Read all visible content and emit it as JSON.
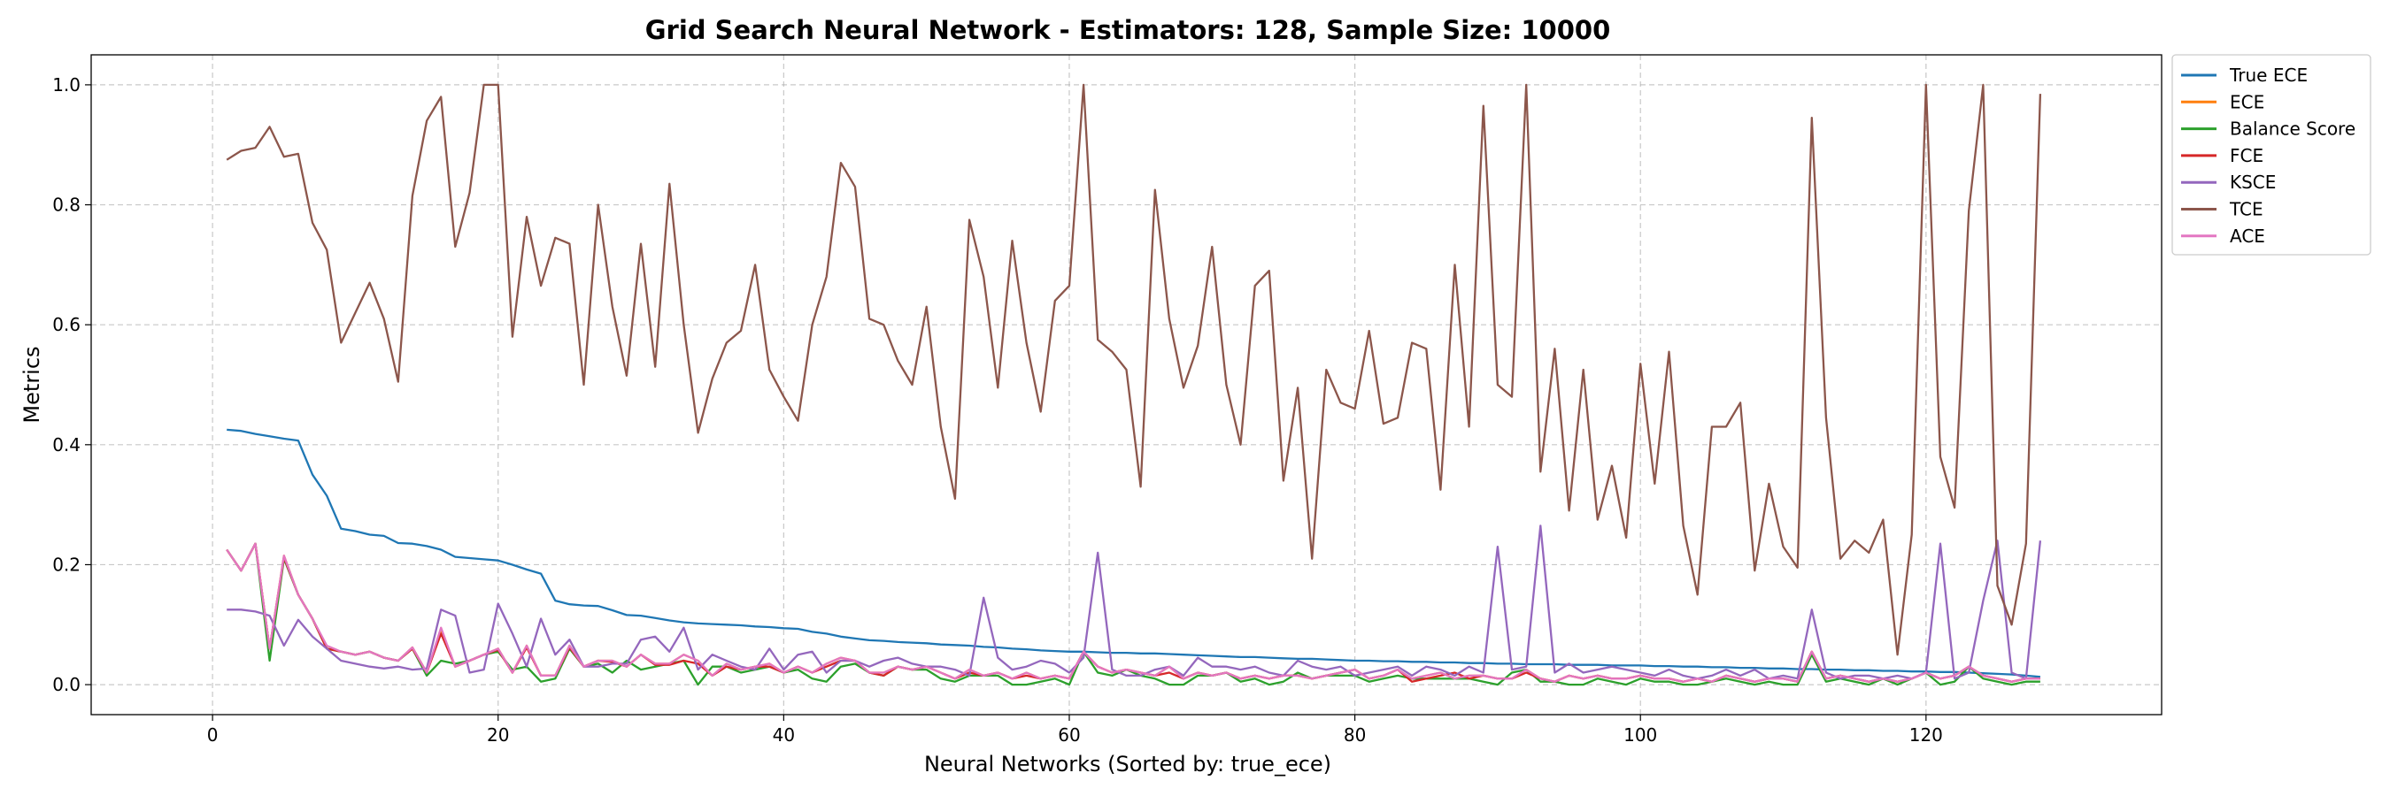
{
  "chart_data": {
    "type": "line",
    "title": "Grid Search Neural Network - Estimators: 128, Sample Size: 10000",
    "xlabel": "Neural Networks (Sorted by: true_ece)",
    "ylabel": "Metrics",
    "xlim": [
      -8.5,
      136.5
    ],
    "ylim": [
      -0.05,
      1.05
    ],
    "xticks": [
      0,
      20,
      40,
      60,
      80,
      100,
      120
    ],
    "yticks": [
      0.0,
      0.2,
      0.4,
      0.6,
      0.8,
      1.0
    ],
    "ytick_labels": [
      "0.0",
      "0.2",
      "0.4",
      "0.6",
      "0.8",
      "1.0"
    ],
    "grid": true,
    "legend_position": "outside-top-right",
    "x_start": 1,
    "series": [
      {
        "name": "True ECE",
        "color": "#1f77b4",
        "values": [
          0.425,
          0.423,
          0.418,
          0.414,
          0.41,
          0.407,
          0.35,
          0.315,
          0.26,
          0.256,
          0.25,
          0.248,
          0.236,
          0.235,
          0.231,
          0.225,
          0.213,
          0.211,
          0.209,
          0.207,
          0.2,
          0.192,
          0.185,
          0.14,
          0.134,
          0.132,
          0.131,
          0.124,
          0.116,
          0.115,
          0.111,
          0.107,
          0.104,
          0.102,
          0.101,
          0.1,
          0.099,
          0.097,
          0.096,
          0.094,
          0.093,
          0.088,
          0.085,
          0.08,
          0.077,
          0.074,
          0.073,
          0.071,
          0.07,
          0.069,
          0.067,
          0.066,
          0.065,
          0.063,
          0.062,
          0.06,
          0.059,
          0.057,
          0.056,
          0.055,
          0.055,
          0.054,
          0.053,
          0.053,
          0.052,
          0.052,
          0.051,
          0.05,
          0.049,
          0.048,
          0.047,
          0.046,
          0.046,
          0.045,
          0.044,
          0.043,
          0.043,
          0.042,
          0.041,
          0.04,
          0.04,
          0.039,
          0.039,
          0.038,
          0.038,
          0.037,
          0.037,
          0.036,
          0.036,
          0.035,
          0.035,
          0.034,
          0.034,
          0.034,
          0.033,
          0.033,
          0.033,
          0.032,
          0.032,
          0.032,
          0.031,
          0.031,
          0.03,
          0.03,
          0.029,
          0.029,
          0.028,
          0.028,
          0.027,
          0.027,
          0.026,
          0.026,
          0.025,
          0.025,
          0.024,
          0.024,
          0.023,
          0.023,
          0.022,
          0.022,
          0.021,
          0.021,
          0.02,
          0.019,
          0.018,
          0.017,
          0.015,
          0.013
        ]
      },
      {
        "name": "ECE",
        "color": "#ff7f0e",
        "values": [
          0.225,
          0.19,
          0.235,
          0.06,
          0.215,
          0.15,
          0.11,
          0.06,
          0.055,
          0.05,
          0.055,
          0.045,
          0.04,
          0.062,
          0.02,
          0.09,
          0.03,
          0.04,
          0.05,
          0.06,
          0.02,
          0.065,
          0.015,
          0.015,
          0.065,
          0.03,
          0.04,
          0.04,
          0.03,
          0.05,
          0.035,
          0.035,
          0.05,
          0.04,
          0.015,
          0.035,
          0.025,
          0.03,
          0.035,
          0.02,
          0.03,
          0.02,
          0.035,
          0.045,
          0.04,
          0.02,
          0.02,
          0.03,
          0.025,
          0.03,
          0.02,
          0.01,
          0.025,
          0.015,
          0.02,
          0.01,
          0.02,
          0.01,
          0.015,
          0.01,
          0.055,
          0.03,
          0.02,
          0.025,
          0.02,
          0.015,
          0.03,
          0.01,
          0.02,
          0.015,
          0.02,
          0.01,
          0.015,
          0.01,
          0.015,
          0.015,
          0.01,
          0.015,
          0.02,
          0.025,
          0.01,
          0.015,
          0.025,
          0.01,
          0.015,
          0.02,
          0.01,
          0.015,
          0.015,
          0.01,
          0.01,
          0.025,
          0.01,
          0.005,
          0.015,
          0.01,
          0.015,
          0.01,
          0.01,
          0.015,
          0.01,
          0.01,
          0.005,
          0.01,
          0.005,
          0.015,
          0.01,
          0.005,
          0.01,
          0.01,
          0.005,
          0.055,
          0.01,
          0.015,
          0.01,
          0.005,
          0.01,
          0.005,
          0.01,
          0.02,
          0.01,
          0.015,
          0.03,
          0.015,
          0.01,
          0.005,
          0.01,
          0.01
        ]
      },
      {
        "name": "Balance Score",
        "color": "#2ca02c",
        "values": [
          0.225,
          0.19,
          0.235,
          0.04,
          0.21,
          0.15,
          0.11,
          0.06,
          0.055,
          0.05,
          0.055,
          0.045,
          0.04,
          0.06,
          0.015,
          0.04,
          0.035,
          0.04,
          0.05,
          0.055,
          0.025,
          0.03,
          0.005,
          0.01,
          0.06,
          0.03,
          0.035,
          0.02,
          0.04,
          0.025,
          0.03,
          0.035,
          0.04,
          0.0,
          0.03,
          0.03,
          0.02,
          0.025,
          0.03,
          0.02,
          0.025,
          0.01,
          0.005,
          0.03,
          0.035,
          0.02,
          0.015,
          0.03,
          0.025,
          0.025,
          0.01,
          0.005,
          0.015,
          0.015,
          0.015,
          0.0,
          0.0,
          0.005,
          0.01,
          0.0,
          0.055,
          0.02,
          0.015,
          0.025,
          0.015,
          0.01,
          0.0,
          0.0,
          0.015,
          0.015,
          0.02,
          0.005,
          0.01,
          0.0,
          0.005,
          0.02,
          0.01,
          0.015,
          0.015,
          0.015,
          0.005,
          0.01,
          0.015,
          0.01,
          0.01,
          0.01,
          0.01,
          0.01,
          0.005,
          0.0,
          0.02,
          0.025,
          0.005,
          0.005,
          0.0,
          0.0,
          0.01,
          0.005,
          0.0,
          0.01,
          0.005,
          0.005,
          0.0,
          0.0,
          0.005,
          0.01,
          0.005,
          0.0,
          0.005,
          0.0,
          0.0,
          0.05,
          0.005,
          0.01,
          0.005,
          0.0,
          0.01,
          0.0,
          0.01,
          0.02,
          0.0,
          0.005,
          0.03,
          0.01,
          0.005,
          0.0,
          0.005,
          0.005
        ]
      },
      {
        "name": "FCE",
        "color": "#d62728",
        "values": [
          0.225,
          0.19,
          0.235,
          0.06,
          0.212,
          0.15,
          0.11,
          0.06,
          0.055,
          0.05,
          0.055,
          0.045,
          0.04,
          0.06,
          0.02,
          0.085,
          0.03,
          0.04,
          0.05,
          0.058,
          0.02,
          0.062,
          0.015,
          0.015,
          0.062,
          0.03,
          0.04,
          0.038,
          0.03,
          0.05,
          0.033,
          0.033,
          0.04,
          0.035,
          0.015,
          0.03,
          0.025,
          0.03,
          0.03,
          0.02,
          0.03,
          0.02,
          0.03,
          0.04,
          0.04,
          0.02,
          0.015,
          0.03,
          0.025,
          0.03,
          0.02,
          0.01,
          0.02,
          0.015,
          0.02,
          0.01,
          0.015,
          0.01,
          0.015,
          0.01,
          0.055,
          0.03,
          0.02,
          0.025,
          0.02,
          0.015,
          0.02,
          0.01,
          0.02,
          0.015,
          0.02,
          0.01,
          0.015,
          0.01,
          0.015,
          0.015,
          0.01,
          0.015,
          0.02,
          0.025,
          0.01,
          0.015,
          0.025,
          0.005,
          0.01,
          0.015,
          0.02,
          0.01,
          0.015,
          0.01,
          0.01,
          0.02,
          0.01,
          0.005,
          0.015,
          0.01,
          0.015,
          0.01,
          0.01,
          0.015,
          0.01,
          0.01,
          0.005,
          0.01,
          0.005,
          0.015,
          0.01,
          0.005,
          0.01,
          0.01,
          0.005,
          0.055,
          0.01,
          0.015,
          0.01,
          0.005,
          0.01,
          0.005,
          0.01,
          0.02,
          0.01,
          0.015,
          0.03,
          0.015,
          0.01,
          0.005,
          0.01,
          0.01
        ]
      },
      {
        "name": "KSCE",
        "color": "#9467bd",
        "values": [
          0.125,
          0.125,
          0.122,
          0.115,
          0.065,
          0.108,
          0.08,
          0.06,
          0.04,
          0.035,
          0.03,
          0.027,
          0.03,
          0.025,
          0.027,
          0.125,
          0.115,
          0.02,
          0.025,
          0.135,
          0.085,
          0.03,
          0.11,
          0.05,
          0.075,
          0.03,
          0.03,
          0.035,
          0.035,
          0.075,
          0.08,
          0.055,
          0.095,
          0.025,
          0.05,
          0.04,
          0.03,
          0.025,
          0.06,
          0.025,
          0.05,
          0.055,
          0.02,
          0.04,
          0.04,
          0.03,
          0.04,
          0.045,
          0.035,
          0.03,
          0.03,
          0.025,
          0.015,
          0.145,
          0.045,
          0.025,
          0.03,
          0.04,
          0.035,
          0.02,
          0.045,
          0.22,
          0.025,
          0.015,
          0.015,
          0.025,
          0.03,
          0.015,
          0.045,
          0.03,
          0.03,
          0.025,
          0.03,
          0.02,
          0.015,
          0.04,
          0.03,
          0.025,
          0.03,
          0.015,
          0.02,
          0.025,
          0.03,
          0.015,
          0.03,
          0.025,
          0.015,
          0.03,
          0.02,
          0.23,
          0.025,
          0.03,
          0.265,
          0.02,
          0.035,
          0.02,
          0.025,
          0.03,
          0.025,
          0.02,
          0.015,
          0.025,
          0.015,
          0.01,
          0.015,
          0.025,
          0.015,
          0.025,
          0.01,
          0.015,
          0.01,
          0.125,
          0.02,
          0.01,
          0.015,
          0.015,
          0.01,
          0.015,
          0.01,
          0.02,
          0.235,
          0.01,
          0.02,
          0.14,
          0.24,
          0.02,
          0.01,
          0.24
        ]
      },
      {
        "name": "TCE",
        "color": "#8c564b",
        "values": [
          0.875,
          0.89,
          0.895,
          0.93,
          0.88,
          0.885,
          0.77,
          0.725,
          0.57,
          0.62,
          0.67,
          0.61,
          0.505,
          0.815,
          0.94,
          0.98,
          0.73,
          0.82,
          1.0,
          1.0,
          0.58,
          0.78,
          0.665,
          0.745,
          0.735,
          0.5,
          0.8,
          0.63,
          0.515,
          0.735,
          0.53,
          0.835,
          0.6,
          0.42,
          0.51,
          0.57,
          0.59,
          0.7,
          0.525,
          0.48,
          0.44,
          0.6,
          0.68,
          0.87,
          0.83,
          0.61,
          0.6,
          0.54,
          0.5,
          0.63,
          0.43,
          0.31,
          0.775,
          0.68,
          0.495,
          0.74,
          0.57,
          0.455,
          0.64,
          0.665,
          1.0,
          0.575,
          0.555,
          0.525,
          0.33,
          0.825,
          0.61,
          0.495,
          0.565,
          0.73,
          0.5,
          0.4,
          0.665,
          0.69,
          0.34,
          0.495,
          0.21,
          0.525,
          0.47,
          0.46,
          0.59,
          0.435,
          0.445,
          0.57,
          0.56,
          0.325,
          0.7,
          0.43,
          0.965,
          0.5,
          0.48,
          1.0,
          0.355,
          0.56,
          0.29,
          0.525,
          0.275,
          0.365,
          0.245,
          0.535,
          0.335,
          0.555,
          0.265,
          0.15,
          0.43,
          0.43,
          0.47,
          0.19,
          0.335,
          0.23,
          0.195,
          0.945,
          0.445,
          0.21,
          0.24,
          0.22,
          0.275,
          0.05,
          0.25,
          1.0,
          0.38,
          0.295,
          0.79,
          1.0,
          0.165,
          0.1,
          0.235,
          0.985
        ]
      },
      {
        "name": "ACE",
        "color": "#e377c2",
        "values": [
          0.225,
          0.19,
          0.235,
          0.06,
          0.215,
          0.15,
          0.11,
          0.065,
          0.055,
          0.05,
          0.055,
          0.045,
          0.04,
          0.062,
          0.02,
          0.095,
          0.03,
          0.04,
          0.05,
          0.06,
          0.02,
          0.065,
          0.015,
          0.015,
          0.065,
          0.03,
          0.04,
          0.04,
          0.03,
          0.05,
          0.035,
          0.035,
          0.05,
          0.04,
          0.015,
          0.035,
          0.025,
          0.03,
          0.035,
          0.02,
          0.03,
          0.02,
          0.035,
          0.045,
          0.04,
          0.02,
          0.02,
          0.03,
          0.025,
          0.03,
          0.02,
          0.01,
          0.025,
          0.015,
          0.02,
          0.01,
          0.02,
          0.01,
          0.015,
          0.01,
          0.055,
          0.03,
          0.02,
          0.025,
          0.02,
          0.015,
          0.03,
          0.01,
          0.02,
          0.015,
          0.02,
          0.01,
          0.015,
          0.01,
          0.015,
          0.015,
          0.01,
          0.015,
          0.02,
          0.025,
          0.01,
          0.015,
          0.025,
          0.01,
          0.015,
          0.02,
          0.01,
          0.015,
          0.015,
          0.01,
          0.01,
          0.025,
          0.01,
          0.005,
          0.015,
          0.01,
          0.015,
          0.01,
          0.01,
          0.015,
          0.01,
          0.01,
          0.005,
          0.01,
          0.005,
          0.015,
          0.01,
          0.005,
          0.01,
          0.01,
          0.005,
          0.055,
          0.01,
          0.015,
          0.01,
          0.005,
          0.01,
          0.005,
          0.01,
          0.02,
          0.01,
          0.015,
          0.03,
          0.015,
          0.01,
          0.005,
          0.01,
          0.01
        ]
      }
    ]
  }
}
